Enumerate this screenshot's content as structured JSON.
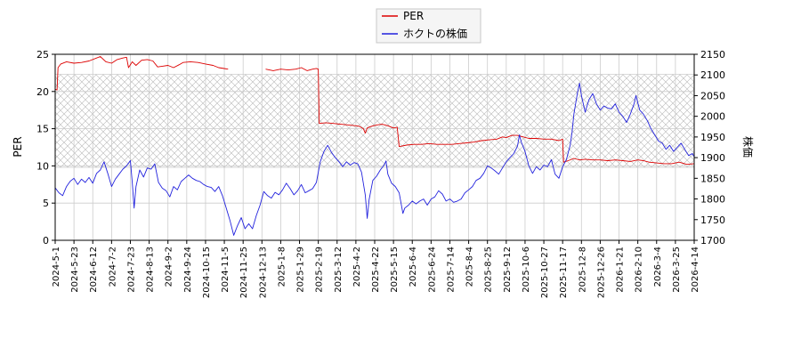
{
  "chart_data": {
    "type": "line",
    "legend": {
      "placement": "top-center",
      "entries": [
        {
          "label": "PER",
          "color": "#dd0000"
        },
        {
          "label": "ホクトの株価",
          "color": "#2222dd"
        }
      ]
    },
    "y_left": {
      "label": "PER",
      "min": 0,
      "max": 25,
      "ticks": [
        0,
        5,
        10,
        15,
        20,
        25
      ]
    },
    "y_right": {
      "label": "株価",
      "min": 1700,
      "max": 2150,
      "ticks": [
        1700,
        1750,
        1800,
        1850,
        1900,
        1950,
        2000,
        2050,
        2100,
        2150
      ]
    },
    "x_ticks": [
      "2024-5-1",
      "2024-5-23",
      "2024-6-12",
      "2024-7-2",
      "2024-7-23",
      "2024-8-13",
      "2024-9-2",
      "2024-9-24",
      "2024-10-15",
      "2024-11-5",
      "2024-11-25",
      "2024-12-13",
      "2025-1-8",
      "2025-1-29",
      "2025-2-19",
      "2025-3-12",
      "2025-4-2",
      "2025-4-22",
      "2025-5-15",
      "2025-6-4",
      "2025-6-24",
      "2025-7-14",
      "2025-8-4",
      "2025-8-25",
      "2025-9-12",
      "2025-10-6",
      "2025-10-27",
      "2025-11-17",
      "2025-12-8",
      "2025-12-26",
      "2026-1-21",
      "2026-2-10",
      "2026-3-4",
      "2026-3-25",
      "2026-4-14"
    ],
    "grid": true,
    "hatched_band": {
      "per_min": 9.8,
      "per_max": 22.3
    },
    "series": [
      {
        "name": "PER",
        "axis": "left",
        "color": "#dd0000",
        "points": [
          [
            0,
            20.3
          ],
          [
            0.1,
            20.2
          ],
          [
            0.15,
            23.2
          ],
          [
            0.3,
            23.7
          ],
          [
            0.6,
            24.0
          ],
          [
            1.0,
            23.8
          ],
          [
            1.4,
            23.9
          ],
          [
            1.8,
            24.1
          ],
          [
            2.2,
            24.5
          ],
          [
            2.4,
            24.7
          ],
          [
            2.7,
            24.0
          ],
          [
            3.0,
            23.8
          ],
          [
            3.3,
            24.3
          ],
          [
            3.6,
            24.5
          ],
          [
            3.8,
            24.6
          ],
          [
            3.9,
            23.2
          ],
          [
            4.0,
            23.6
          ],
          [
            4.1,
            24.0
          ],
          [
            4.3,
            23.5
          ],
          [
            4.6,
            24.2
          ],
          [
            4.9,
            24.3
          ],
          [
            5.2,
            24.1
          ],
          [
            5.45,
            23.3
          ],
          [
            5.7,
            23.4
          ],
          [
            6.0,
            23.5
          ],
          [
            6.3,
            23.2
          ],
          [
            6.6,
            23.6
          ],
          [
            6.8,
            23.9
          ],
          [
            7.2,
            24.0
          ],
          [
            7.6,
            23.9
          ],
          [
            8.0,
            23.7
          ],
          [
            8.4,
            23.5
          ],
          [
            8.7,
            23.2
          ],
          [
            9.2,
            23.0
          ],
          [
            null,
            null
          ],
          [
            11.2,
            23.0
          ],
          [
            11.6,
            22.8
          ],
          [
            12.0,
            23.0
          ],
          [
            12.4,
            22.9
          ],
          [
            12.8,
            23.0
          ],
          [
            13.1,
            23.2
          ],
          [
            13.4,
            22.8
          ],
          [
            13.7,
            23.0
          ],
          [
            13.9,
            23.1
          ],
          [
            14.0,
            23.0
          ],
          [
            14.05,
            15.7
          ],
          [
            14.4,
            15.8
          ],
          [
            14.8,
            15.7
          ],
          [
            15.2,
            15.6
          ],
          [
            15.6,
            15.5
          ],
          [
            16.0,
            15.4
          ],
          [
            16.2,
            15.3
          ],
          [
            16.4,
            15.0
          ],
          [
            16.5,
            14.4
          ],
          [
            16.6,
            15.1
          ],
          [
            16.8,
            15.3
          ],
          [
            17.1,
            15.5
          ],
          [
            17.4,
            15.6
          ],
          [
            17.7,
            15.4
          ],
          [
            18.0,
            15.1
          ],
          [
            18.2,
            15.2
          ],
          [
            18.3,
            12.6
          ],
          [
            18.7,
            12.8
          ],
          [
            19.1,
            12.9
          ],
          [
            19.5,
            12.9
          ],
          [
            19.9,
            13.0
          ],
          [
            20.3,
            12.9
          ],
          [
            20.7,
            12.9
          ],
          [
            21.1,
            12.9
          ],
          [
            21.5,
            13.0
          ],
          [
            21.9,
            13.1
          ],
          [
            22.3,
            13.2
          ],
          [
            22.7,
            13.4
          ],
          [
            23.1,
            13.5
          ],
          [
            23.5,
            13.6
          ],
          [
            23.8,
            13.9
          ],
          [
            24.0,
            13.8
          ],
          [
            24.3,
            14.1
          ],
          [
            24.6,
            14.1
          ],
          [
            24.9,
            13.9
          ],
          [
            25.2,
            13.7
          ],
          [
            25.6,
            13.7
          ],
          [
            26.0,
            13.6
          ],
          [
            26.4,
            13.6
          ],
          [
            26.8,
            13.4
          ],
          [
            27.0,
            13.6
          ],
          [
            27.05,
            10.5
          ],
          [
            27.3,
            10.7
          ],
          [
            27.6,
            11.0
          ],
          [
            27.9,
            10.8
          ],
          [
            28.2,
            10.9
          ],
          [
            28.6,
            10.8
          ],
          [
            29.0,
            10.8
          ],
          [
            29.4,
            10.7
          ],
          [
            29.8,
            10.8
          ],
          [
            30.2,
            10.7
          ],
          [
            30.6,
            10.6
          ],
          [
            31.0,
            10.8
          ],
          [
            31.3,
            10.7
          ],
          [
            31.6,
            10.5
          ],
          [
            32.0,
            10.4
          ],
          [
            32.4,
            10.3
          ],
          [
            32.8,
            10.3
          ],
          [
            33.2,
            10.5
          ],
          [
            33.6,
            10.2
          ],
          [
            34.0,
            10.3
          ],
          [
            34.4,
            10.0
          ],
          [
            34.7,
            9.8
          ],
          [
            35.0,
            9.9
          ]
        ]
      },
      {
        "name": "ホクトの株価",
        "axis": "right",
        "color": "#2222dd",
        "points": [
          [
            0,
            1827
          ],
          [
            0.2,
            1815
          ],
          [
            0.4,
            1808
          ],
          [
            0.6,
            1830
          ],
          [
            0.8,
            1843
          ],
          [
            1.0,
            1850
          ],
          [
            1.2,
            1835
          ],
          [
            1.4,
            1848
          ],
          [
            1.6,
            1840
          ],
          [
            1.8,
            1852
          ],
          [
            2.0,
            1838
          ],
          [
            2.2,
            1862
          ],
          [
            2.4,
            1870
          ],
          [
            2.6,
            1890
          ],
          [
            2.8,
            1862
          ],
          [
            3.0,
            1830
          ],
          [
            3.2,
            1848
          ],
          [
            3.4,
            1860
          ],
          [
            3.6,
            1872
          ],
          [
            3.8,
            1880
          ],
          [
            4.0,
            1893
          ],
          [
            4.1,
            1840
          ],
          [
            4.2,
            1778
          ],
          [
            4.3,
            1830
          ],
          [
            4.5,
            1870
          ],
          [
            4.7,
            1853
          ],
          [
            4.9,
            1875
          ],
          [
            5.1,
            1872
          ],
          [
            5.3,
            1885
          ],
          [
            5.5,
            1840
          ],
          [
            5.7,
            1826
          ],
          [
            5.9,
            1820
          ],
          [
            6.1,
            1805
          ],
          [
            6.3,
            1830
          ],
          [
            6.5,
            1822
          ],
          [
            6.7,
            1842
          ],
          [
            6.9,
            1850
          ],
          [
            7.1,
            1858
          ],
          [
            7.3,
            1850
          ],
          [
            7.5,
            1845
          ],
          [
            7.7,
            1842
          ],
          [
            7.9,
            1835
          ],
          [
            8.1,
            1830
          ],
          [
            8.3,
            1828
          ],
          [
            8.5,
            1818
          ],
          [
            8.7,
            1830
          ],
          [
            8.9,
            1808
          ],
          [
            9.1,
            1778
          ],
          [
            9.3,
            1748
          ],
          [
            9.5,
            1712
          ],
          [
            9.7,
            1735
          ],
          [
            9.9,
            1755
          ],
          [
            10.1,
            1728
          ],
          [
            10.3,
            1740
          ],
          [
            10.5,
            1728
          ],
          [
            10.7,
            1760
          ],
          [
            10.9,
            1785
          ],
          [
            11.1,
            1818
          ],
          [
            11.3,
            1808
          ],
          [
            11.5,
            1802
          ],
          [
            11.7,
            1816
          ],
          [
            11.9,
            1810
          ],
          [
            12.1,
            1822
          ],
          [
            12.3,
            1838
          ],
          [
            12.5,
            1825
          ],
          [
            12.7,
            1810
          ],
          [
            12.9,
            1820
          ],
          [
            13.1,
            1835
          ],
          [
            13.3,
            1815
          ],
          [
            13.5,
            1820
          ],
          [
            13.7,
            1825
          ],
          [
            13.9,
            1840
          ],
          [
            14.1,
            1890
          ],
          [
            14.3,
            1915
          ],
          [
            14.5,
            1930
          ],
          [
            14.7,
            1913
          ],
          [
            14.9,
            1900
          ],
          [
            15.1,
            1890
          ],
          [
            15.3,
            1878
          ],
          [
            15.5,
            1890
          ],
          [
            15.7,
            1882
          ],
          [
            15.9,
            1888
          ],
          [
            16.1,
            1885
          ],
          [
            16.3,
            1865
          ],
          [
            16.5,
            1810
          ],
          [
            16.6,
            1753
          ],
          [
            16.7,
            1798
          ],
          [
            16.9,
            1845
          ],
          [
            17.1,
            1855
          ],
          [
            17.3,
            1870
          ],
          [
            17.5,
            1882
          ],
          [
            17.6,
            1892
          ],
          [
            17.7,
            1860
          ],
          [
            17.9,
            1838
          ],
          [
            18.1,
            1830
          ],
          [
            18.3,
            1815
          ],
          [
            18.4,
            1790
          ],
          [
            18.5,
            1765
          ],
          [
            18.6,
            1778
          ],
          [
            18.8,
            1785
          ],
          [
            19.0,
            1795
          ],
          [
            19.2,
            1788
          ],
          [
            19.4,
            1795
          ],
          [
            19.6,
            1800
          ],
          [
            19.8,
            1785
          ],
          [
            20.0,
            1800
          ],
          [
            20.2,
            1805
          ],
          [
            20.4,
            1820
          ],
          [
            20.6,
            1812
          ],
          [
            20.8,
            1795
          ],
          [
            21.0,
            1800
          ],
          [
            21.2,
            1792
          ],
          [
            21.4,
            1795
          ],
          [
            21.6,
            1800
          ],
          [
            21.8,
            1815
          ],
          [
            22.0,
            1822
          ],
          [
            22.2,
            1830
          ],
          [
            22.4,
            1845
          ],
          [
            22.6,
            1850
          ],
          [
            22.8,
            1862
          ],
          [
            23.0,
            1880
          ],
          [
            23.2,
            1875
          ],
          [
            23.4,
            1868
          ],
          [
            23.6,
            1860
          ],
          [
            23.8,
            1875
          ],
          [
            24.0,
            1890
          ],
          [
            24.2,
            1900
          ],
          [
            24.4,
            1910
          ],
          [
            24.6,
            1928
          ],
          [
            24.7,
            1955
          ],
          [
            24.8,
            1938
          ],
          [
            25.0,
            1915
          ],
          [
            25.2,
            1880
          ],
          [
            25.4,
            1862
          ],
          [
            25.6,
            1878
          ],
          [
            25.8,
            1870
          ],
          [
            26.0,
            1882
          ],
          [
            26.2,
            1878
          ],
          [
            26.4,
            1895
          ],
          [
            26.6,
            1860
          ],
          [
            26.8,
            1850
          ],
          [
            27.0,
            1878
          ],
          [
            27.2,
            1895
          ],
          [
            27.4,
            1930
          ],
          [
            27.5,
            1960
          ],
          [
            27.6,
            2005
          ],
          [
            27.8,
            2060
          ],
          [
            27.9,
            2080
          ],
          [
            28.0,
            2050
          ],
          [
            28.2,
            2010
          ],
          [
            28.4,
            2040
          ],
          [
            28.6,
            2055
          ],
          [
            28.8,
            2030
          ],
          [
            29.0,
            2015
          ],
          [
            29.2,
            2025
          ],
          [
            29.4,
            2020
          ],
          [
            29.6,
            2018
          ],
          [
            29.8,
            2030
          ],
          [
            30.0,
            2010
          ],
          [
            30.2,
            2000
          ],
          [
            30.4,
            1985
          ],
          [
            30.6,
            2005
          ],
          [
            30.8,
            2030
          ],
          [
            30.9,
            2050
          ],
          [
            31.1,
            2015
          ],
          [
            31.3,
            2005
          ],
          [
            31.5,
            1990
          ],
          [
            31.7,
            1970
          ],
          [
            31.9,
            1955
          ],
          [
            32.1,
            1940
          ],
          [
            32.3,
            1935
          ],
          [
            32.5,
            1920
          ],
          [
            32.7,
            1930
          ],
          [
            32.9,
            1915
          ],
          [
            33.1,
            1925
          ],
          [
            33.3,
            1935
          ],
          [
            33.5,
            1920
          ],
          [
            33.7,
            1905
          ],
          [
            33.9,
            1910
          ],
          [
            34.1,
            1895
          ],
          [
            34.3,
            1880
          ],
          [
            34.5,
            1860
          ],
          [
            34.7,
            1850
          ],
          [
            34.9,
            1850
          ]
        ]
      }
    ]
  }
}
